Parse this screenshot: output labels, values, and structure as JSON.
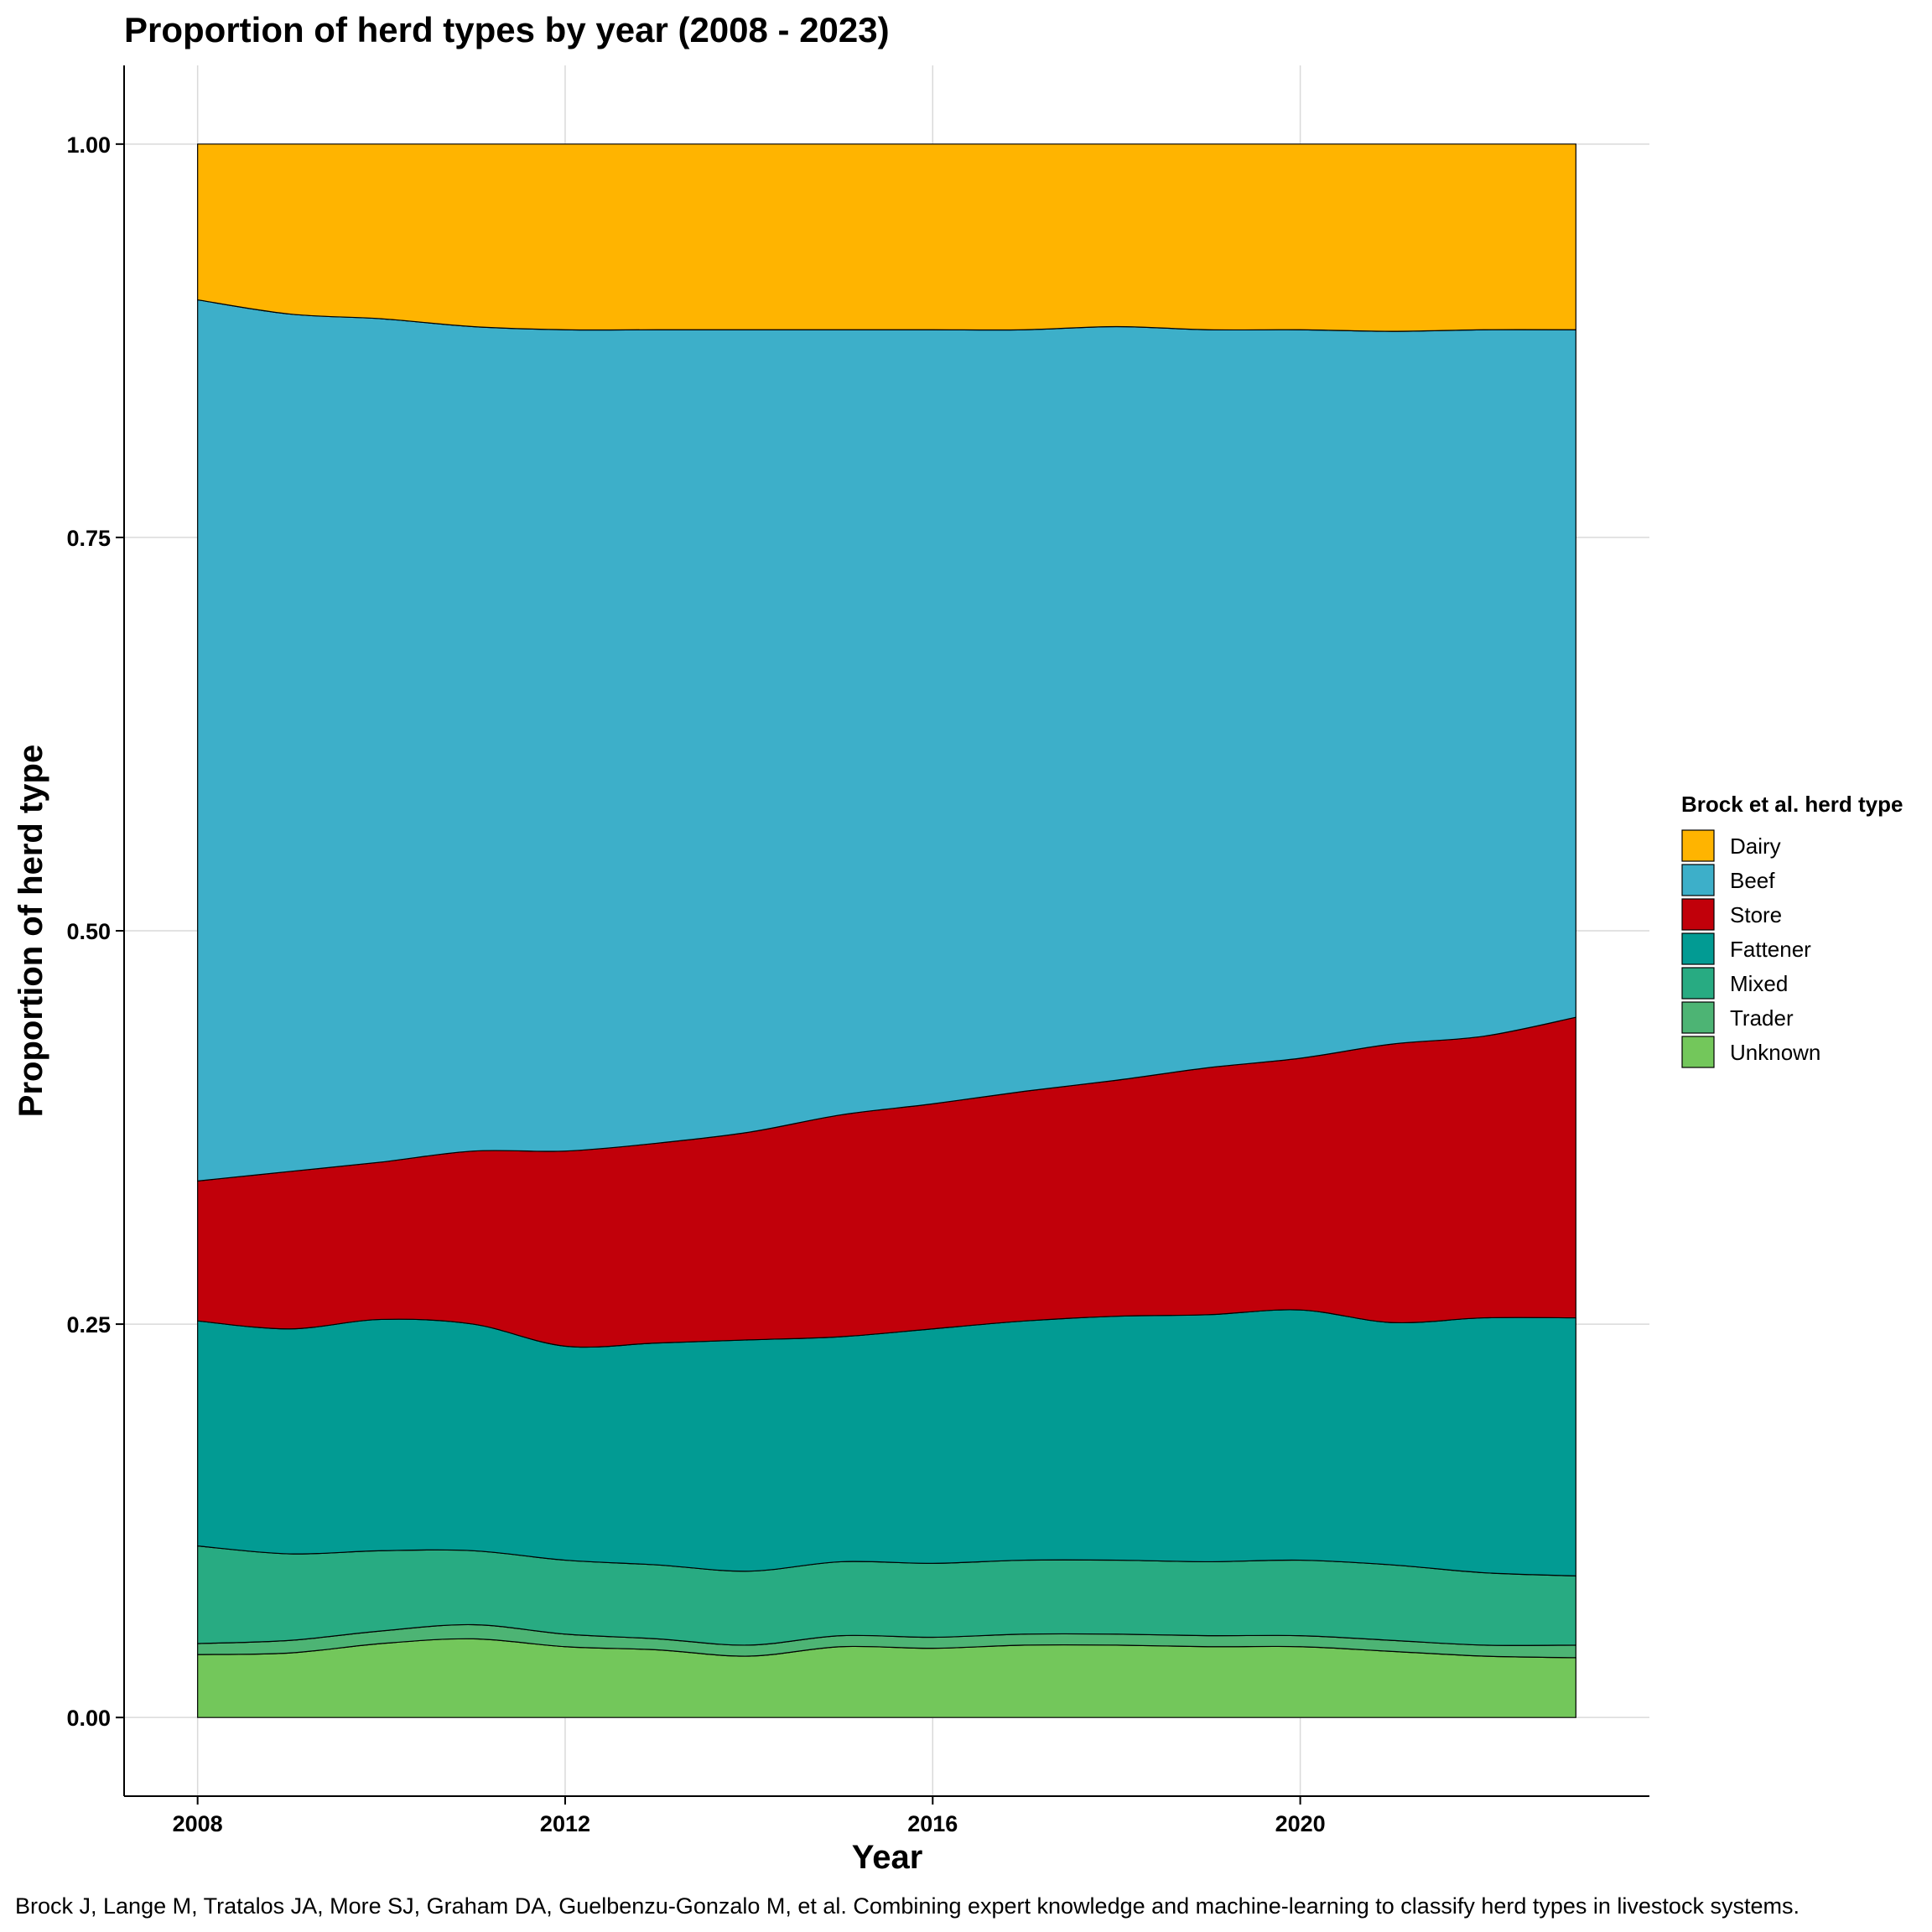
{
  "chart_data": {
    "type": "area",
    "stacked": true,
    "title": "Proportion of herd types by year (2008 - 2023)",
    "xlabel": "Year",
    "ylabel": "Proportion of herd type",
    "xlim": [
      2007.2,
      2023.8
    ],
    "ylim": [
      -0.05,
      1.05
    ],
    "x_ticks": [
      2008,
      2012,
      2016,
      2020
    ],
    "x_tick_labels": [
      "2008",
      "2012",
      "2016",
      "2020"
    ],
    "y_ticks": [
      0,
      0.25,
      0.5,
      0.75,
      1.0
    ],
    "y_tick_labels": [
      "0.00",
      "0.25",
      "0.50",
      "0.75",
      "1.00"
    ],
    "grid": true,
    "legend_position": "right",
    "legend_title": "Brock et al. herd type",
    "x": [
      2008,
      2009,
      2010,
      2011,
      2012,
      2013,
      2014,
      2015,
      2016,
      2017,
      2018,
      2019,
      2020,
      2021,
      2022,
      2023
    ],
    "series": [
      {
        "name": "Unknown",
        "color": "#73C75B",
        "values": [
          0.04,
          0.041,
          0.047,
          0.05,
          0.045,
          0.043,
          0.039,
          0.045,
          0.044,
          0.046,
          0.046,
          0.045,
          0.045,
          0.042,
          0.039,
          0.038
        ]
      },
      {
        "name": "Trader",
        "color": "#4DB474",
        "values": [
          0.007,
          0.008,
          0.008,
          0.009,
          0.008,
          0.007,
          0.007,
          0.007,
          0.007,
          0.007,
          0.007,
          0.007,
          0.007,
          0.007,
          0.007,
          0.008
        ]
      },
      {
        "name": "Mixed",
        "color": "#28AB82",
        "values": [
          0.062,
          0.055,
          0.051,
          0.047,
          0.047,
          0.047,
          0.047,
          0.047,
          0.047,
          0.047,
          0.047,
          0.047,
          0.048,
          0.048,
          0.046,
          0.044
        ]
      },
      {
        "name": "Fattener",
        "color": "#029B93",
        "values": [
          0.143,
          0.143,
          0.147,
          0.144,
          0.136,
          0.141,
          0.147,
          0.143,
          0.149,
          0.152,
          0.155,
          0.157,
          0.159,
          0.154,
          0.162,
          0.164
        ]
      },
      {
        "name": "Store",
        "color": "#C1000A",
        "values": [
          0.089,
          0.1,
          0.1,
          0.11,
          0.124,
          0.127,
          0.132,
          0.141,
          0.143,
          0.146,
          0.15,
          0.157,
          0.16,
          0.177,
          0.179,
          0.191
        ]
      },
      {
        "name": "Beef",
        "color": "#3DAFC9",
        "values": [
          0.56,
          0.545,
          0.536,
          0.524,
          0.522,
          0.517,
          0.51,
          0.499,
          0.492,
          0.484,
          0.479,
          0.469,
          0.463,
          0.453,
          0.449,
          0.437
        ]
      },
      {
        "name": "Dairy",
        "color": "#FFB400",
        "values": [
          0.099,
          0.108,
          0.111,
          0.116,
          0.118,
          0.118,
          0.118,
          0.118,
          0.118,
          0.118,
          0.116,
          0.118,
          0.118,
          0.119,
          0.118,
          0.118
        ]
      }
    ],
    "legend_order": [
      "Dairy",
      "Beef",
      "Store",
      "Fattener",
      "Mixed",
      "Trader",
      "Unknown"
    ]
  },
  "caption": "Brock J, Lange M, Tratalos JA, More SJ, Graham DA, Guelbenzu-Gonzalo M, et al. Combining expert knowledge and machine-learning to classify herd types in livestock systems."
}
